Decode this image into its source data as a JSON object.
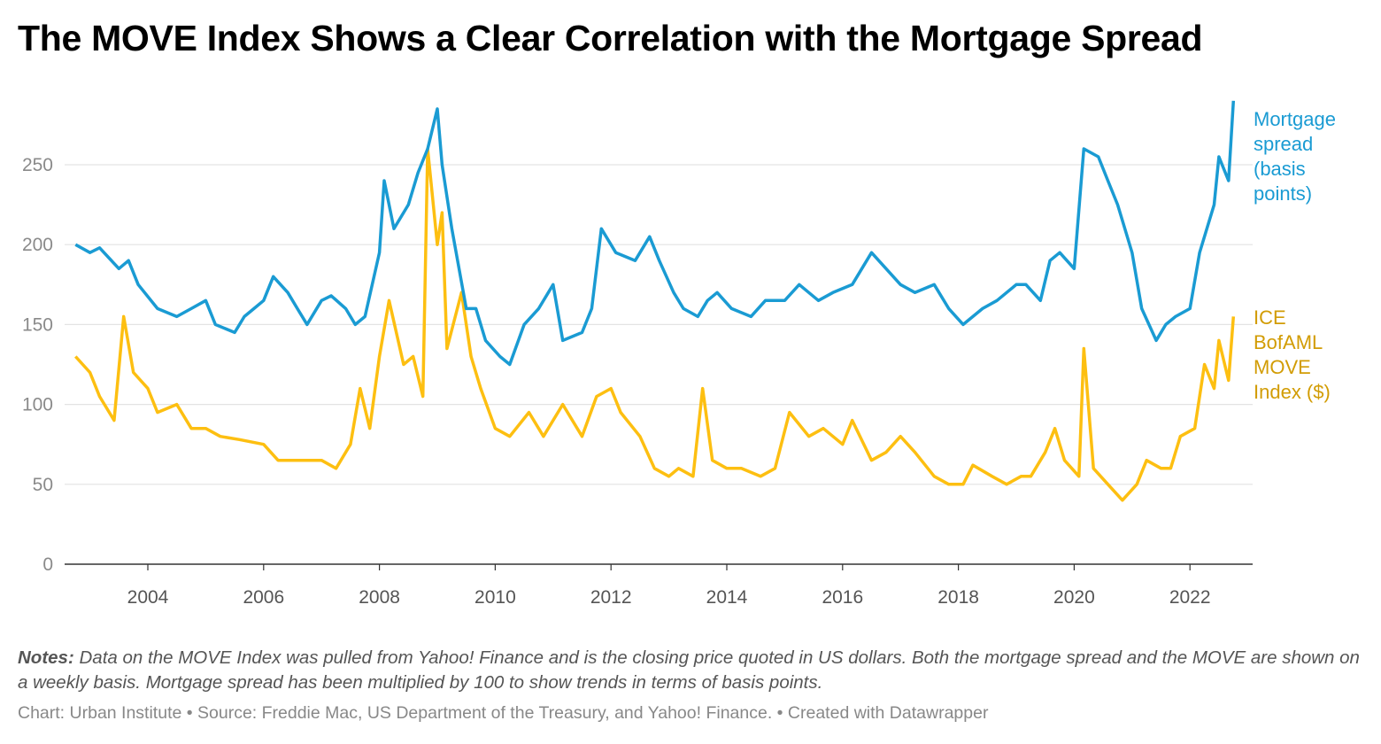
{
  "title": "The MOVE Index Shows a Clear Correlation with the Mortgage Spread",
  "notes_label": "Notes:",
  "notes_text": "Data on the MOVE Index was pulled from Yahoo! Finance and is the closing price quoted in US dollars. Both the mortgage spread and the MOVE are shown on a weekly basis. Mortgage spread has been multiplied by 100 to show trends in terms of basis points.",
  "source": "Chart: Urban Institute • Source: Freddie Mac, US Department of the Treasury, and Yahoo! Finance. • Created with Datawrapper",
  "chart_data": {
    "type": "line",
    "title": "The MOVE Index Shows a Clear Correlation with the Mortgage Spread",
    "xlabel": "",
    "ylabel": "",
    "ylim": [
      0,
      300
    ],
    "xlim": [
      "2002-10",
      "2022-10"
    ],
    "y_ticks": [
      "0",
      "50",
      "100",
      "150",
      "200",
      "250"
    ],
    "x_ticks": [
      "2004",
      "2006",
      "2008",
      "2010",
      "2012",
      "2014",
      "2016",
      "2018",
      "2020",
      "2022"
    ],
    "grid": "horizontal",
    "legend": "direct labels at right",
    "series": [
      {
        "name": "Mortgage spread (basis points)",
        "color": "#1a9bd3",
        "label_color": "#1a9bd3",
        "points": [
          [
            "2002-10",
            200
          ],
          [
            "2003-01",
            195
          ],
          [
            "2003-03",
            198
          ],
          [
            "2003-07",
            185
          ],
          [
            "2003-09",
            190
          ],
          [
            "2003-11",
            175
          ],
          [
            "2004-03",
            160
          ],
          [
            "2004-07",
            155
          ],
          [
            "2004-10",
            160
          ],
          [
            "2005-01",
            165
          ],
          [
            "2005-03",
            150
          ],
          [
            "2005-07",
            145
          ],
          [
            "2005-09",
            155
          ],
          [
            "2005-11",
            160
          ],
          [
            "2006-01",
            165
          ],
          [
            "2006-03",
            180
          ],
          [
            "2006-06",
            170
          ],
          [
            "2006-08",
            160
          ],
          [
            "2006-10",
            150
          ],
          [
            "2007-01",
            165
          ],
          [
            "2007-03",
            168
          ],
          [
            "2007-06",
            160
          ],
          [
            "2007-08",
            150
          ],
          [
            "2007-10",
            155
          ],
          [
            "2008-01",
            195
          ],
          [
            "2008-02",
            240
          ],
          [
            "2008-04",
            210
          ],
          [
            "2008-07",
            225
          ],
          [
            "2008-09",
            245
          ],
          [
            "2008-11",
            260
          ],
          [
            "2009-01",
            285
          ],
          [
            "2009-02",
            250
          ],
          [
            "2009-04",
            210
          ],
          [
            "2009-07",
            160
          ],
          [
            "2009-09",
            160
          ],
          [
            "2009-11",
            140
          ],
          [
            "2010-02",
            130
          ],
          [
            "2010-04",
            125
          ],
          [
            "2010-07",
            150
          ],
          [
            "2010-10",
            160
          ],
          [
            "2011-01",
            175
          ],
          [
            "2011-03",
            140
          ],
          [
            "2011-07",
            145
          ],
          [
            "2011-09",
            160
          ],
          [
            "2011-11",
            210
          ],
          [
            "2012-02",
            195
          ],
          [
            "2012-06",
            190
          ],
          [
            "2012-09",
            205
          ],
          [
            "2012-11",
            190
          ],
          [
            "2013-02",
            170
          ],
          [
            "2013-04",
            160
          ],
          [
            "2013-07",
            155
          ],
          [
            "2013-09",
            165
          ],
          [
            "2013-11",
            170
          ],
          [
            "2014-02",
            160
          ],
          [
            "2014-06",
            155
          ],
          [
            "2014-09",
            165
          ],
          [
            "2015-01",
            165
          ],
          [
            "2015-04",
            175
          ],
          [
            "2015-08",
            165
          ],
          [
            "2015-11",
            170
          ],
          [
            "2016-03",
            175
          ],
          [
            "2016-07",
            195
          ],
          [
            "2016-10",
            185
          ],
          [
            "2017-01",
            175
          ],
          [
            "2017-04",
            170
          ],
          [
            "2017-08",
            175
          ],
          [
            "2017-11",
            160
          ],
          [
            "2018-02",
            150
          ],
          [
            "2018-06",
            160
          ],
          [
            "2018-09",
            165
          ],
          [
            "2019-01",
            175
          ],
          [
            "2019-03",
            175
          ],
          [
            "2019-06",
            165
          ],
          [
            "2019-08",
            190
          ],
          [
            "2019-10",
            195
          ],
          [
            "2020-01",
            185
          ],
          [
            "2020-03",
            260
          ],
          [
            "2020-06",
            255
          ],
          [
            "2020-08",
            240
          ],
          [
            "2020-10",
            225
          ],
          [
            "2021-01",
            195
          ],
          [
            "2021-03",
            160
          ],
          [
            "2021-06",
            140
          ],
          [
            "2021-08",
            150
          ],
          [
            "2021-10",
            155
          ],
          [
            "2022-01",
            160
          ],
          [
            "2022-03",
            195
          ],
          [
            "2022-06",
            225
          ],
          [
            "2022-07",
            255
          ],
          [
            "2022-09",
            240
          ],
          [
            "2022-10",
            290
          ]
        ]
      },
      {
        "name": "ICE BofAML MOVE Index ($)",
        "color": "#fdbf11",
        "label_color": "#d29c04",
        "points": [
          [
            "2002-10",
            130
          ],
          [
            "2003-01",
            120
          ],
          [
            "2003-03",
            105
          ],
          [
            "2003-06",
            90
          ],
          [
            "2003-08",
            155
          ],
          [
            "2003-10",
            120
          ],
          [
            "2004-01",
            110
          ],
          [
            "2004-03",
            95
          ],
          [
            "2004-07",
            100
          ],
          [
            "2004-10",
            85
          ],
          [
            "2005-01",
            85
          ],
          [
            "2005-04",
            80
          ],
          [
            "2005-08",
            78
          ],
          [
            "2006-01",
            75
          ],
          [
            "2006-04",
            65
          ],
          [
            "2006-08",
            65
          ],
          [
            "2007-01",
            65
          ],
          [
            "2007-04",
            60
          ],
          [
            "2007-07",
            75
          ],
          [
            "2007-09",
            110
          ],
          [
            "2007-11",
            85
          ],
          [
            "2008-01",
            130
          ],
          [
            "2008-03",
            165
          ],
          [
            "2008-06",
            125
          ],
          [
            "2008-08",
            130
          ],
          [
            "2008-10",
            105
          ],
          [
            "2008-11",
            260
          ],
          [
            "2009-01",
            200
          ],
          [
            "2009-02",
            220
          ],
          [
            "2009-03",
            135
          ],
          [
            "2009-06",
            170
          ],
          [
            "2009-08",
            130
          ],
          [
            "2009-10",
            110
          ],
          [
            "2010-01",
            85
          ],
          [
            "2010-04",
            80
          ],
          [
            "2010-08",
            95
          ],
          [
            "2010-11",
            80
          ],
          [
            "2011-03",
            100
          ],
          [
            "2011-07",
            80
          ],
          [
            "2011-10",
            105
          ],
          [
            "2012-01",
            110
          ],
          [
            "2012-03",
            95
          ],
          [
            "2012-07",
            80
          ],
          [
            "2012-10",
            60
          ],
          [
            "2013-01",
            55
          ],
          [
            "2013-03",
            60
          ],
          [
            "2013-06",
            55
          ],
          [
            "2013-08",
            110
          ],
          [
            "2013-10",
            65
          ],
          [
            "2014-01",
            60
          ],
          [
            "2014-04",
            60
          ],
          [
            "2014-08",
            55
          ],
          [
            "2014-11",
            60
          ],
          [
            "2015-02",
            95
          ],
          [
            "2015-06",
            80
          ],
          [
            "2015-09",
            85
          ],
          [
            "2016-01",
            75
          ],
          [
            "2016-03",
            90
          ],
          [
            "2016-07",
            65
          ],
          [
            "2016-10",
            70
          ],
          [
            "2017-01",
            80
          ],
          [
            "2017-04",
            70
          ],
          [
            "2017-08",
            55
          ],
          [
            "2017-11",
            50
          ],
          [
            "2018-02",
            50
          ],
          [
            "2018-04",
            62
          ],
          [
            "2018-08",
            55
          ],
          [
            "2018-11",
            50
          ],
          [
            "2019-02",
            55
          ],
          [
            "2019-04",
            55
          ],
          [
            "2019-07",
            70
          ],
          [
            "2019-09",
            85
          ],
          [
            "2019-11",
            65
          ],
          [
            "2020-02",
            55
          ],
          [
            "2020-03",
            135
          ],
          [
            "2020-05",
            60
          ],
          [
            "2020-08",
            50
          ],
          [
            "2020-11",
            40
          ],
          [
            "2021-02",
            50
          ],
          [
            "2021-04",
            65
          ],
          [
            "2021-07",
            60
          ],
          [
            "2021-09",
            60
          ],
          [
            "2021-11",
            80
          ],
          [
            "2022-02",
            85
          ],
          [
            "2022-04",
            125
          ],
          [
            "2022-06",
            110
          ],
          [
            "2022-07",
            140
          ],
          [
            "2022-09",
            115
          ],
          [
            "2022-10",
            155
          ]
        ]
      }
    ]
  }
}
